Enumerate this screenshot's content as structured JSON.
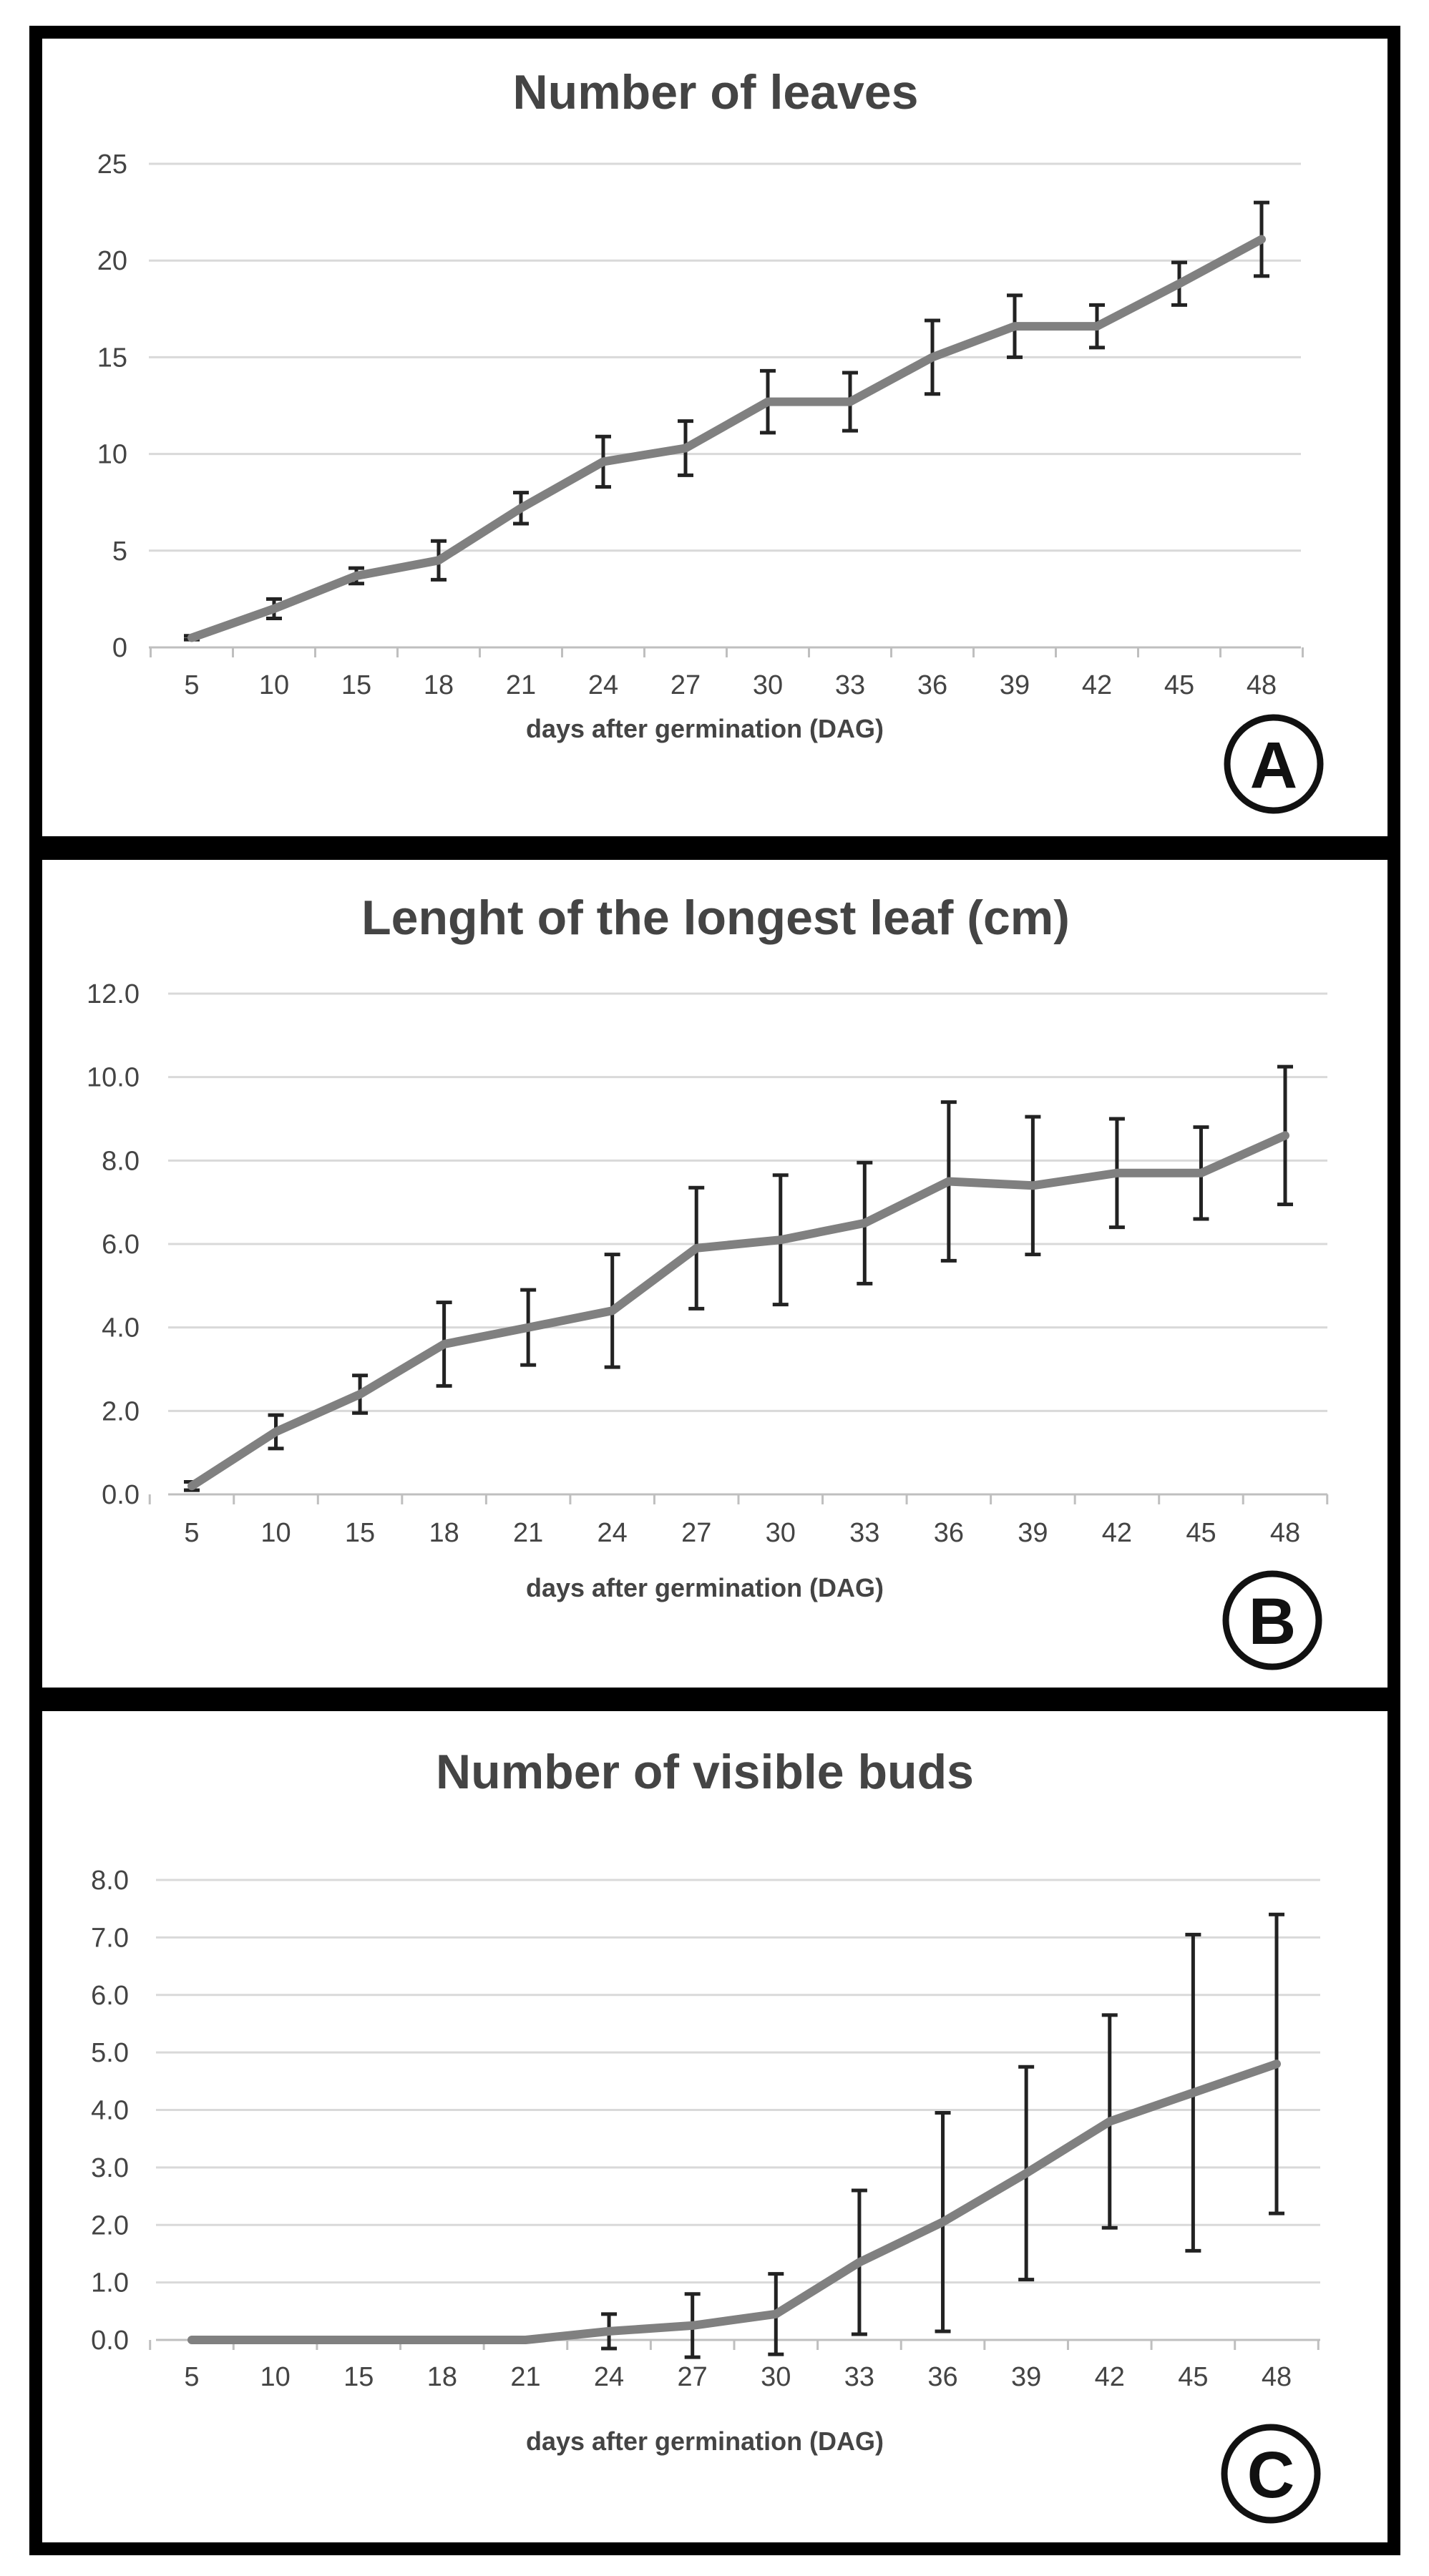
{
  "chart_data": [
    {
      "type": "line",
      "panel": "A",
      "title": "Number of leaves",
      "xlabel": "days after germination (DAG)",
      "ylabel": "",
      "ylim": [
        0,
        25
      ],
      "yticks": [
        "0",
        "5",
        "10",
        "15",
        "20",
        "25"
      ],
      "categories": [
        "5",
        "10",
        "15",
        "18",
        "21",
        "24",
        "27",
        "30",
        "33",
        "36",
        "39",
        "42",
        "45",
        "48"
      ],
      "values": [
        0.5,
        2.0,
        3.7,
        4.5,
        7.2,
        9.6,
        10.3,
        12.7,
        12.7,
        15.0,
        16.6,
        16.6,
        18.8,
        21.1
      ],
      "errors": [
        0.1,
        0.5,
        0.4,
        1.0,
        0.8,
        1.3,
        1.4,
        1.6,
        1.5,
        1.9,
        1.6,
        1.1,
        1.1,
        1.9
      ],
      "grid": true,
      "legend": "none"
    },
    {
      "type": "line",
      "panel": "B",
      "title": "Lenght of the longest leaf (cm)",
      "xlabel": "days after germination (DAG)",
      "ylabel": "",
      "ylim": [
        0,
        12
      ],
      "yticks": [
        "0.0",
        "2.0",
        "4.0",
        "6.0",
        "8.0",
        "10.0",
        "12.0"
      ],
      "categories": [
        "5",
        "10",
        "15",
        "18",
        "21",
        "24",
        "27",
        "30",
        "33",
        "36",
        "39",
        "42",
        "45",
        "48"
      ],
      "values": [
        0.2,
        1.5,
        2.4,
        3.6,
        4.0,
        4.4,
        5.9,
        6.1,
        6.5,
        7.5,
        7.4,
        7.7,
        7.7,
        8.6
      ],
      "errors": [
        0.1,
        0.4,
        0.45,
        1.0,
        0.9,
        1.35,
        1.45,
        1.55,
        1.45,
        1.9,
        1.65,
        1.3,
        1.1,
        1.65
      ],
      "grid": true,
      "legend": "none"
    },
    {
      "type": "line",
      "panel": "C",
      "title": "Number of visible buds",
      "xlabel": "days after germination (DAG)",
      "ylabel": "",
      "ylim": [
        0,
        8
      ],
      "yticks": [
        "0.0",
        "1.0",
        "2.0",
        "3.0",
        "4.0",
        "5.0",
        "6.0",
        "7.0",
        "8.0"
      ],
      "categories": [
        "5",
        "10",
        "15",
        "18",
        "21",
        "24",
        "27",
        "30",
        "33",
        "36",
        "39",
        "42",
        "45",
        "48"
      ],
      "values": [
        0.0,
        0.0,
        0.0,
        0.0,
        0.0,
        0.15,
        0.25,
        0.45,
        1.35,
        2.05,
        2.9,
        3.8,
        4.3,
        4.8
      ],
      "errors": [
        0,
        0,
        0,
        0,
        0,
        0.3,
        0.55,
        0.7,
        1.25,
        1.9,
        1.85,
        1.85,
        2.75,
        2.6
      ],
      "grid": true,
      "legend": "none"
    }
  ]
}
